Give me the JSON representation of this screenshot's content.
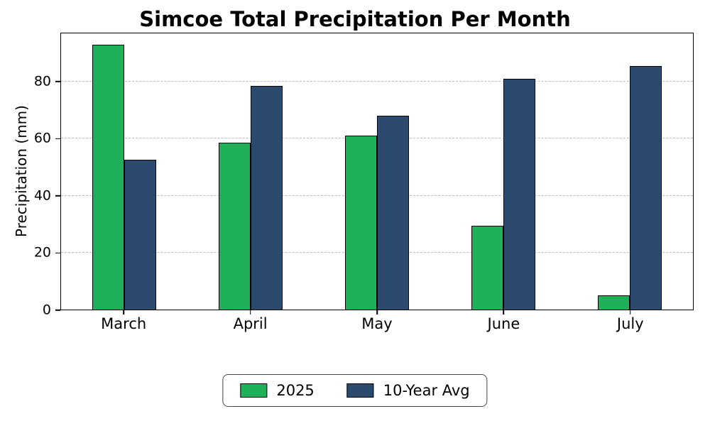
{
  "chart_data": {
    "type": "bar",
    "title": "Simcoe Total Precipitation Per Month",
    "ylabel": "Precipitation (mm)",
    "xlabel": "",
    "categories": [
      "March",
      "April",
      "May",
      "June",
      "July"
    ],
    "series": [
      {
        "name": "2025",
        "color": "#1fb15a",
        "values": [
          93,
          58.5,
          61,
          29.5,
          5
        ]
      },
      {
        "name": "10-Year Avg",
        "color": "#2b4a6e",
        "values": [
          52.5,
          78.5,
          68,
          81,
          85.5
        ]
      }
    ],
    "ylim": [
      0,
      97
    ],
    "yticks": [
      0,
      20,
      40,
      60,
      80
    ],
    "grid": true,
    "grid_style": "dashed",
    "bar_edge_color": "#000000",
    "legend_position": "bottom"
  }
}
